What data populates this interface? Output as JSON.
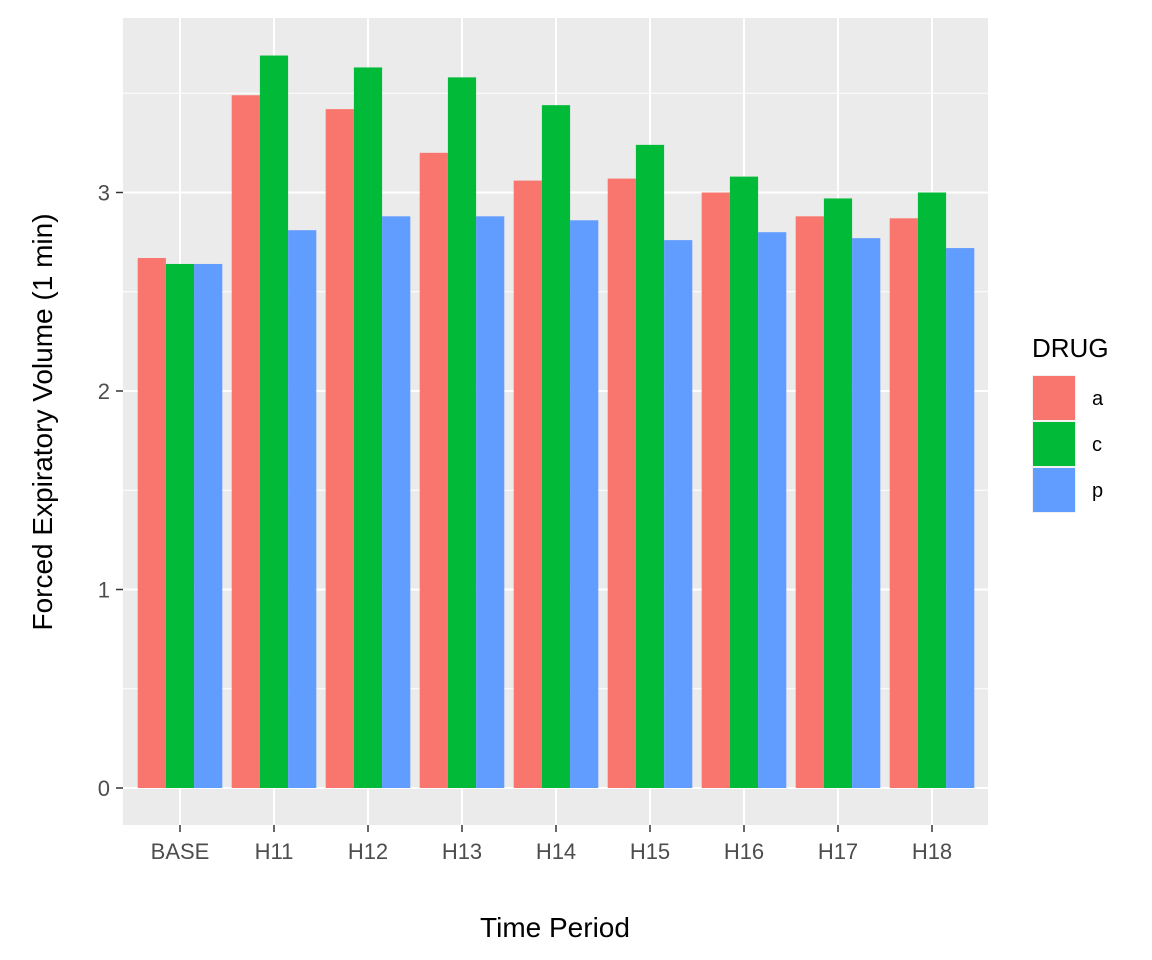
{
  "chart_data": {
    "type": "bar",
    "title": "",
    "xlabel": "Time Period",
    "ylabel": "Forced Expiratory Volume (1 min)",
    "categories": [
      "BASE",
      "H11",
      "H12",
      "H13",
      "H14",
      "H15",
      "H16",
      "H17",
      "H18"
    ],
    "series": [
      {
        "name": "a",
        "color": "#F8766D",
        "values": [
          2.67,
          3.49,
          3.42,
          3.2,
          3.06,
          3.07,
          3.0,
          2.88,
          2.87
        ]
      },
      {
        "name": "c",
        "color": "#00BA38",
        "values": [
          2.64,
          3.69,
          3.63,
          3.58,
          3.44,
          3.24,
          3.08,
          2.97,
          3.0
        ]
      },
      {
        "name": "p",
        "color": "#619CFF",
        "values": [
          2.64,
          2.81,
          2.88,
          2.88,
          2.86,
          2.76,
          2.8,
          2.77,
          2.72
        ]
      }
    ],
    "ylim": [
      0,
      3.8
    ],
    "yticks": [
      0,
      1,
      2,
      3
    ],
    "grid": true,
    "legend": {
      "title": "DRUG",
      "position": "right"
    },
    "panel_background": "#EBEBEB"
  }
}
